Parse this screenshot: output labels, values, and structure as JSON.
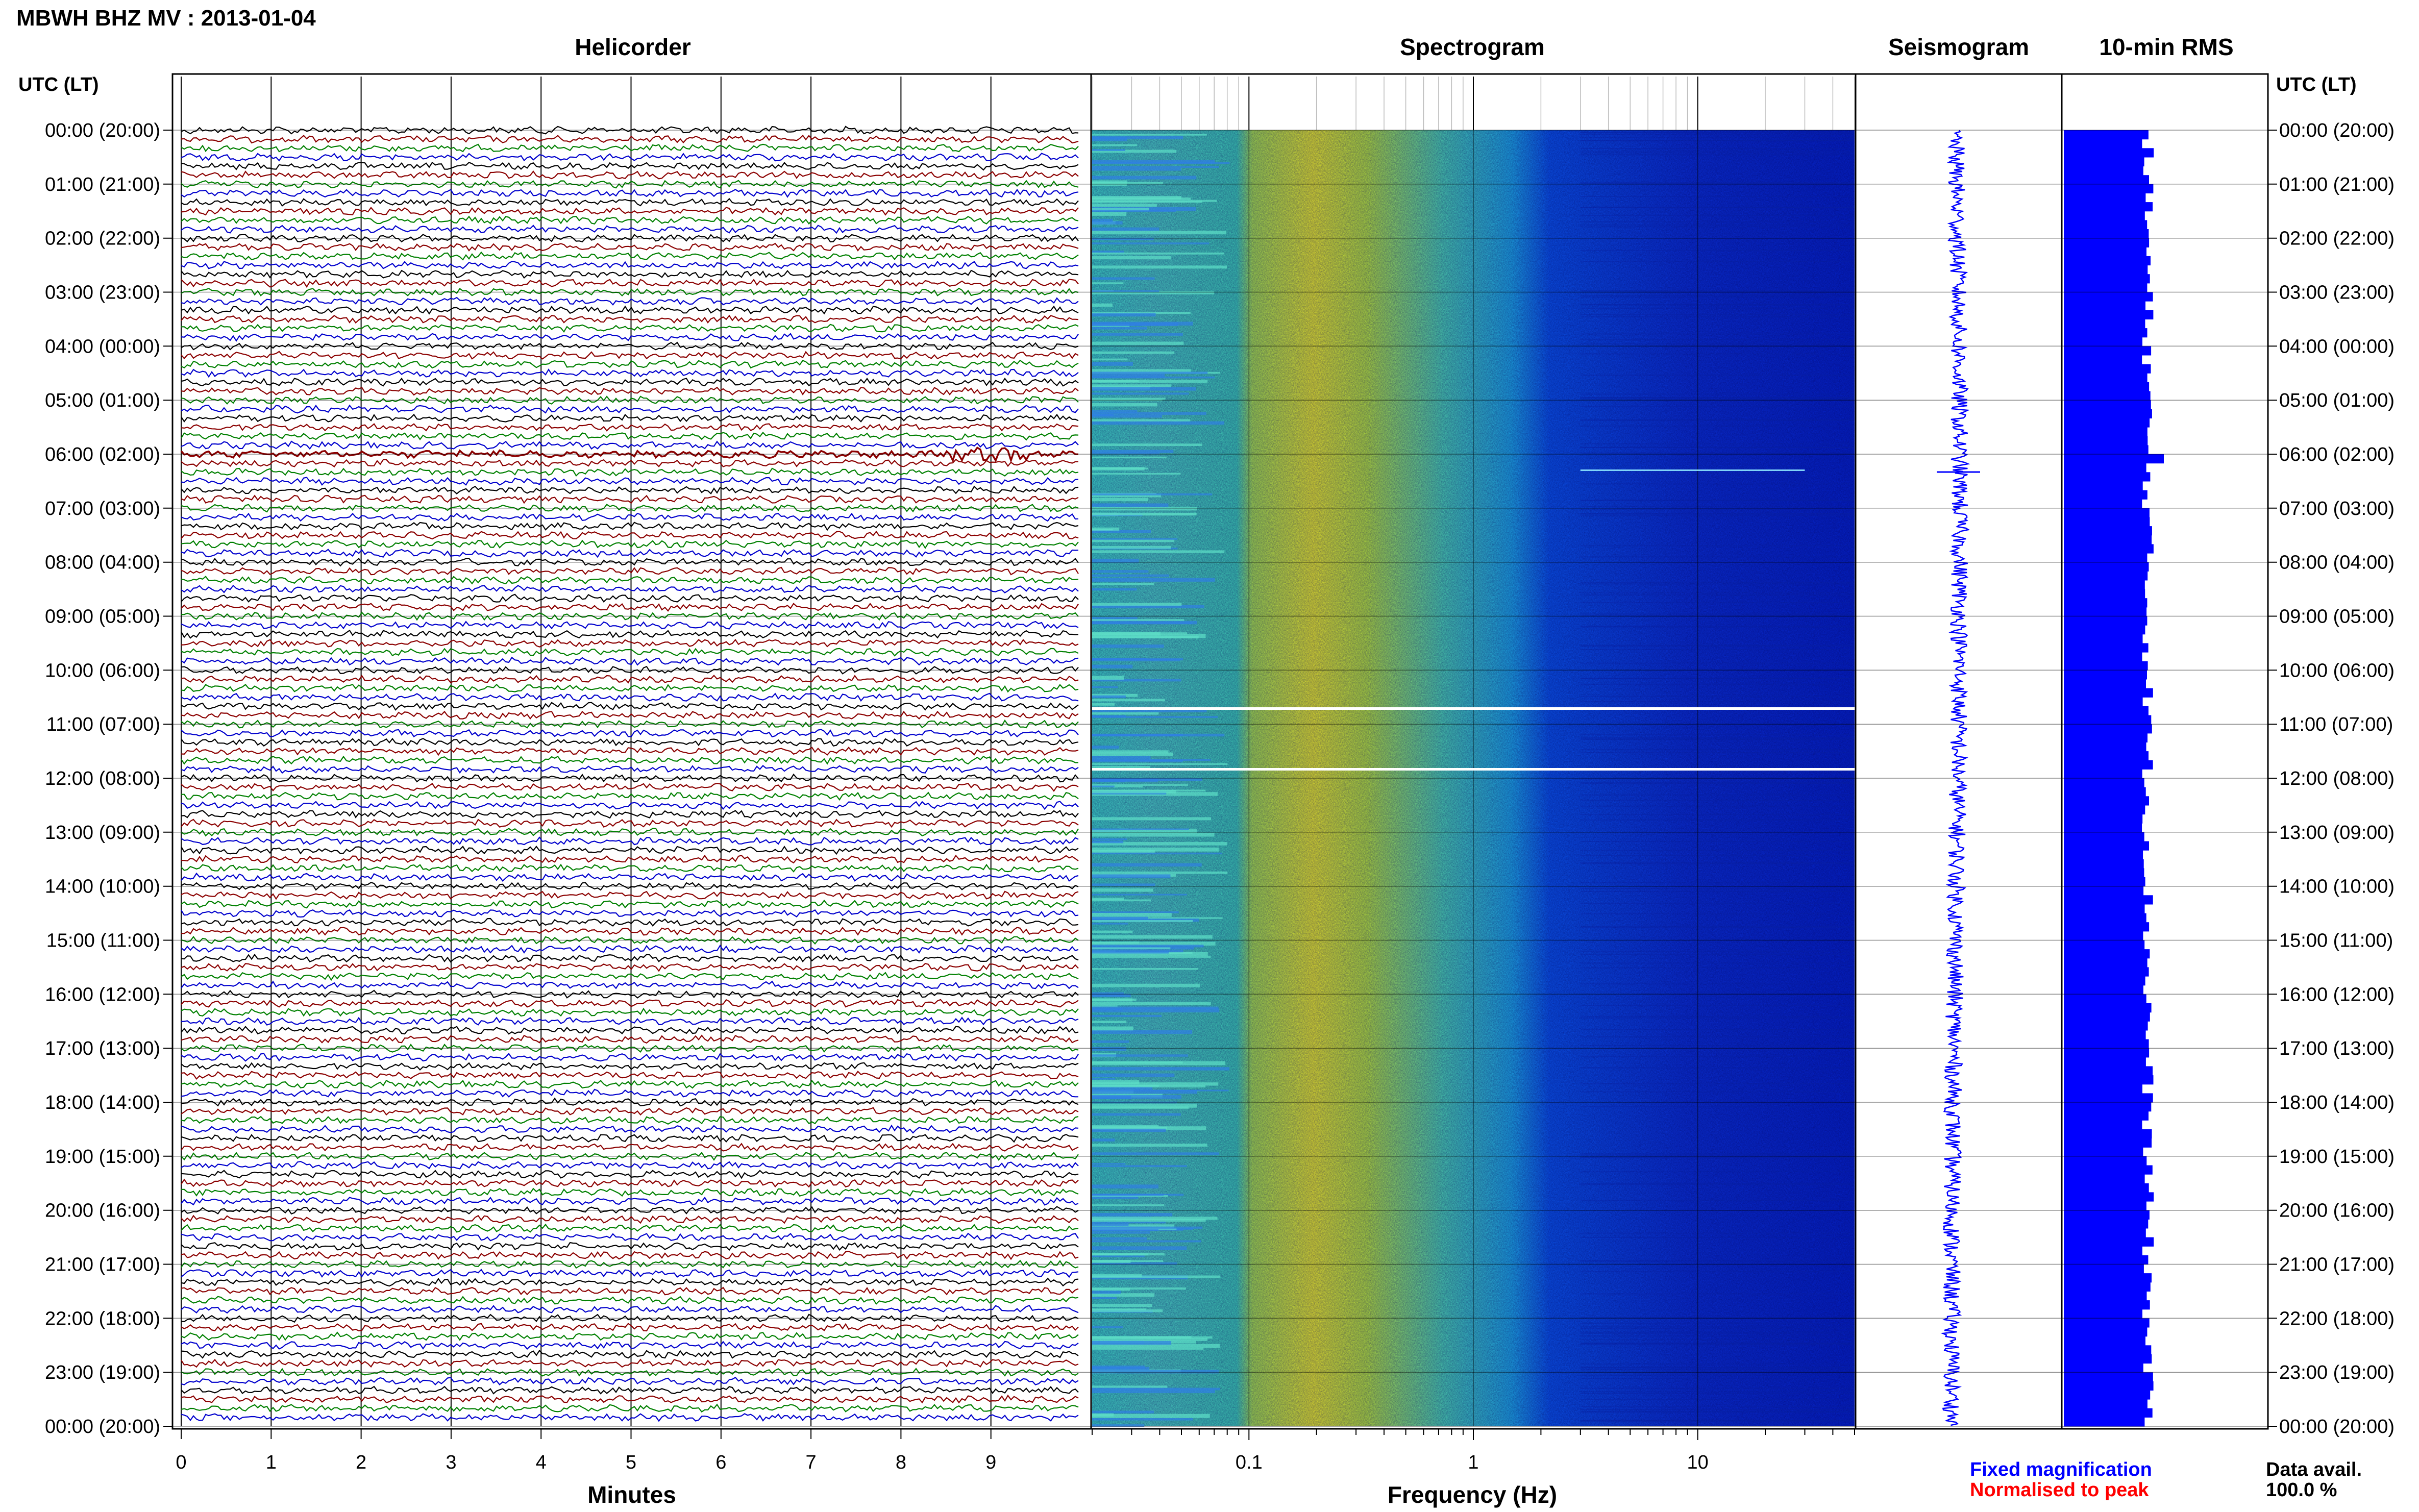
{
  "header": {
    "title": "MBWH BHZ MV : 2013-01-04",
    "utc_label_left": "UTC (LT)",
    "utc_label_right": "UTC (LT)"
  },
  "panels": {
    "helicorder": "Helicorder",
    "spectrogram": "Spectrogram",
    "seismogram": "Seismogram",
    "rms": "10-min RMS"
  },
  "time_labels": [
    "00:00 (20:00)",
    "01:00 (21:00)",
    "02:00 (22:00)",
    "03:00 (23:00)",
    "04:00 (00:00)",
    "05:00 (01:00)",
    "06:00 (02:00)",
    "07:00 (03:00)",
    "08:00 (04:00)",
    "09:00 (05:00)",
    "10:00 (06:00)",
    "11:00 (07:00)",
    "12:00 (08:00)",
    "13:00 (09:00)",
    "14:00 (10:00)",
    "15:00 (11:00)",
    "16:00 (12:00)",
    "17:00 (13:00)",
    "18:00 (14:00)",
    "19:00 (15:00)",
    "20:00 (16:00)",
    "21:00 (17:00)",
    "22:00 (18:00)",
    "23:00 (19:00)",
    "00:00 (20:00)"
  ],
  "axes": {
    "minutes_label": "Minutes",
    "minutes_ticks": [
      "0",
      "1",
      "2",
      "3",
      "4",
      "5",
      "6",
      "7",
      "8",
      "9"
    ],
    "frequency_label": "Frequency (Hz)",
    "frequency_ticks": [
      "0.1",
      "1",
      "10"
    ]
  },
  "legend": {
    "fixed": "Fixed magnification",
    "normalised": "Normalised to peak",
    "fixed_color": "#0000ff",
    "normalised_color": "#ff0000"
  },
  "data_avail": {
    "label": "Data avail.",
    "value": "100.0 %"
  },
  "colors": {
    "trace_cycle": [
      "#000000",
      "#8b0000",
      "#008000",
      "#0000cd"
    ],
    "seismogram": "#0000ff",
    "rms": "#0000ff"
  },
  "chart_data": [
    {
      "type": "line",
      "title": "Helicorder",
      "xlabel": "Minutes",
      "xlim": [
        0,
        10
      ],
      "rows": 144,
      "minutes_per_row": 10,
      "event": {
        "row_start": 36,
        "rows": 1,
        "minute_start": 8.5,
        "minute_end": 9.4,
        "note": "larger amplitude burst near 06:00 UTC"
      }
    },
    {
      "type": "heatmap",
      "title": "Spectrogram",
      "xlabel": "Frequency (Hz)",
      "xscale": "log",
      "xlim": [
        0.02,
        50
      ],
      "peak_band_hz": [
        0.12,
        0.5
      ],
      "dark_above_hz": 3,
      "gaps_utc": [
        "11:00",
        "12:00"
      ]
    },
    {
      "type": "line",
      "title": "Seismogram",
      "event_utc": "06:15"
    },
    {
      "type": "bar",
      "title": "10-min RMS",
      "count": 144,
      "relative_level": 0.42,
      "peak_utc": "06:00",
      "peak_level": 0.5
    }
  ]
}
